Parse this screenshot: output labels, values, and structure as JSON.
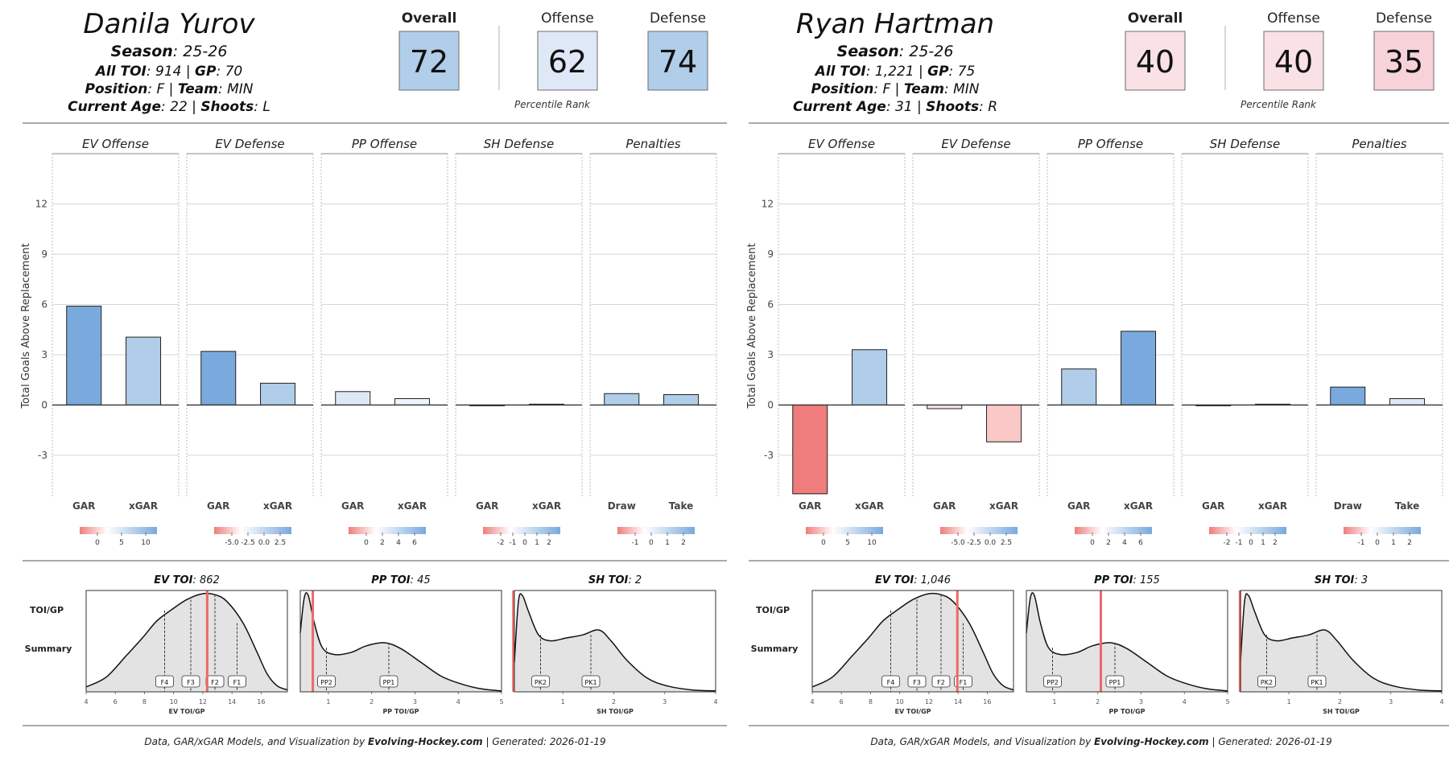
{
  "colors": {
    "blue_deep": "#7aa9dd",
    "blue_mid": "#b0cde9",
    "blue_light": "#dfe8f7",
    "blue_pale": "#eef4fc",
    "red_deep": "#ef7d7d",
    "red_light": "#fbc8c8",
    "red_pale": "#f9e1e5",
    "red_soft": "#f7d3d9",
    "grid": "#d6d6d6",
    "density_fill": "#e3e3e3",
    "marker_red": "#ec6a66"
  },
  "chart_data": [
    {
      "type": "bar",
      "player": {
        "name": "Danila Yurov",
        "season_label": "Season",
        "season": "25-26",
        "toi_label": "All TOI",
        "toi": "914",
        "gp_label": "GP",
        "gp": "70",
        "position_label": "Position",
        "position": "F",
        "team_label": "Team",
        "team": "MIN",
        "age_label": "Current Age",
        "age": "22",
        "shoots_label": "Shoots",
        "shoots": "L"
      },
      "ranks": {
        "overall_label": "Overall",
        "overall": "72",
        "offense_label": "Offense",
        "offense": "62",
        "defense_label": "Defense",
        "defense": "74",
        "caption": "Percentile Rank"
      },
      "ylabel": "Total Goals Above Replacement",
      "ylim": [
        -5.5,
        15
      ],
      "yticks": [
        -3,
        0,
        3,
        6,
        9,
        12
      ],
      "panels": [
        {
          "title": "EV Offense",
          "categories": [
            "GAR",
            "xGAR"
          ],
          "values": [
            5.9,
            4.05
          ],
          "legend_ticks": [
            "0",
            "5",
            "10"
          ]
        },
        {
          "title": "EV Defense",
          "categories": [
            "GAR",
            "xGAR"
          ],
          "values": [
            3.2,
            1.3
          ],
          "legend_ticks": [
            "-5.0",
            "-2.5",
            "0.0",
            "2.5"
          ]
        },
        {
          "title": "PP Offense",
          "categories": [
            "GAR",
            "xGAR"
          ],
          "values": [
            0.8,
            0.38
          ],
          "legend_ticks": [
            "0",
            "2",
            "4",
            "6"
          ]
        },
        {
          "title": "SH Defense",
          "categories": [
            "GAR",
            "xGAR"
          ],
          "values": [
            -0.02,
            0.05
          ],
          "legend_ticks": [
            "-2",
            "-1",
            "0",
            "1",
            "2"
          ]
        },
        {
          "title": "Penalties",
          "categories": [
            "Draw",
            "Take"
          ],
          "values": [
            0.68,
            0.62
          ],
          "legend_ticks": [
            "-1",
            "0",
            "1",
            "2"
          ]
        }
      ],
      "toi": {
        "row_label_1": "TOI/GP",
        "row_label_2": "Summary",
        "panels": [
          {
            "label": "EV TOI",
            "value": "862",
            "xlabel": "EV TOI/GP",
            "xticks": [
              "4",
              "6",
              "8",
              "10",
              "12",
              "14",
              "16"
            ],
            "markers": [
              "F4",
              "F3",
              "F2",
              "F1"
            ]
          },
          {
            "label": "PP TOI",
            "value": "45",
            "xlabel": "PP TOI/GP",
            "xticks": [
              "1",
              "2",
              "3",
              "4",
              "5"
            ],
            "markers": [
              "PP2",
              "PP1"
            ]
          },
          {
            "label": "SH TOI",
            "value": "2",
            "xlabel": "SH TOI/GP",
            "xticks": [
              "1",
              "2",
              "3",
              "4"
            ],
            "markers": [
              "PK2",
              "PK1"
            ]
          }
        ],
        "player_toi_gp": [
          12.3,
          0.64,
          0.03
        ]
      },
      "footer": {
        "prefix": "Data, GAR/xGAR Models, and Visualization by",
        "brand": "Evolving-Hockey.com",
        "suffix": "| Generated: 2026-01-19"
      }
    },
    {
      "type": "bar",
      "player": {
        "name": "Ryan Hartman",
        "season_label": "Season",
        "season": "25-26",
        "toi_label": "All TOI",
        "toi": "1,221",
        "gp_label": "GP",
        "gp": "75",
        "position_label": "Position",
        "position": "F",
        "team_label": "Team",
        "team": "MIN",
        "age_label": "Current Age",
        "age": "31",
        "shoots_label": "Shoots",
        "shoots": "R"
      },
      "ranks": {
        "overall_label": "Overall",
        "overall": "40",
        "offense_label": "Offense",
        "offense": "40",
        "defense_label": "Defense",
        "defense": "35",
        "caption": "Percentile Rank"
      },
      "ylabel": "Total Goals Above Replacement",
      "ylim": [
        -5.5,
        15
      ],
      "yticks": [
        -3,
        0,
        3,
        6,
        9,
        12
      ],
      "panels": [
        {
          "title": "EV Offense",
          "categories": [
            "GAR",
            "xGAR"
          ],
          "values": [
            -5.3,
            3.3
          ],
          "legend_ticks": [
            "0",
            "5",
            "10"
          ]
        },
        {
          "title": "EV Defense",
          "categories": [
            "GAR",
            "xGAR"
          ],
          "values": [
            -0.22,
            -2.2
          ],
          "legend_ticks": [
            "-5.0",
            "-2.5",
            "0.0",
            "2.5"
          ]
        },
        {
          "title": "PP Offense",
          "categories": [
            "GAR",
            "xGAR"
          ],
          "values": [
            2.15,
            4.4
          ],
          "legend_ticks": [
            "0",
            "2",
            "4",
            "6"
          ]
        },
        {
          "title": "SH Defense",
          "categories": [
            "GAR",
            "xGAR"
          ],
          "values": [
            -0.02,
            0.05
          ],
          "legend_ticks": [
            "-2",
            "-1",
            "0",
            "1",
            "2"
          ]
        },
        {
          "title": "Penalties",
          "categories": [
            "Draw",
            "Take"
          ],
          "values": [
            1.07,
            0.38
          ],
          "legend_ticks": [
            "-1",
            "0",
            "1",
            "2"
          ]
        }
      ],
      "toi": {
        "row_label_1": "TOI/GP",
        "row_label_2": "Summary",
        "panels": [
          {
            "label": "EV TOI",
            "value": "1,046",
            "xlabel": "EV TOI/GP",
            "xticks": [
              "4",
              "6",
              "8",
              "10",
              "12",
              "14",
              "16"
            ],
            "markers": [
              "F4",
              "F3",
              "F2",
              "F1"
            ]
          },
          {
            "label": "PP TOI",
            "value": "155",
            "xlabel": "PP TOI/GP",
            "xticks": [
              "1",
              "2",
              "3",
              "4",
              "5"
            ],
            "markers": [
              "PP2",
              "PP1"
            ]
          },
          {
            "label": "SH TOI",
            "value": "3",
            "xlabel": "SH TOI/GP",
            "xticks": [
              "1",
              "2",
              "3",
              "4"
            ],
            "markers": [
              "PK2",
              "PK1"
            ]
          }
        ],
        "player_toi_gp": [
          13.95,
          2.07,
          0.04
        ]
      },
      "footer": {
        "prefix": "Data, GAR/xGAR Models, and Visualization by",
        "brand": "Evolving-Hockey.com",
        "suffix": "| Generated: 2026-01-19"
      }
    }
  ]
}
